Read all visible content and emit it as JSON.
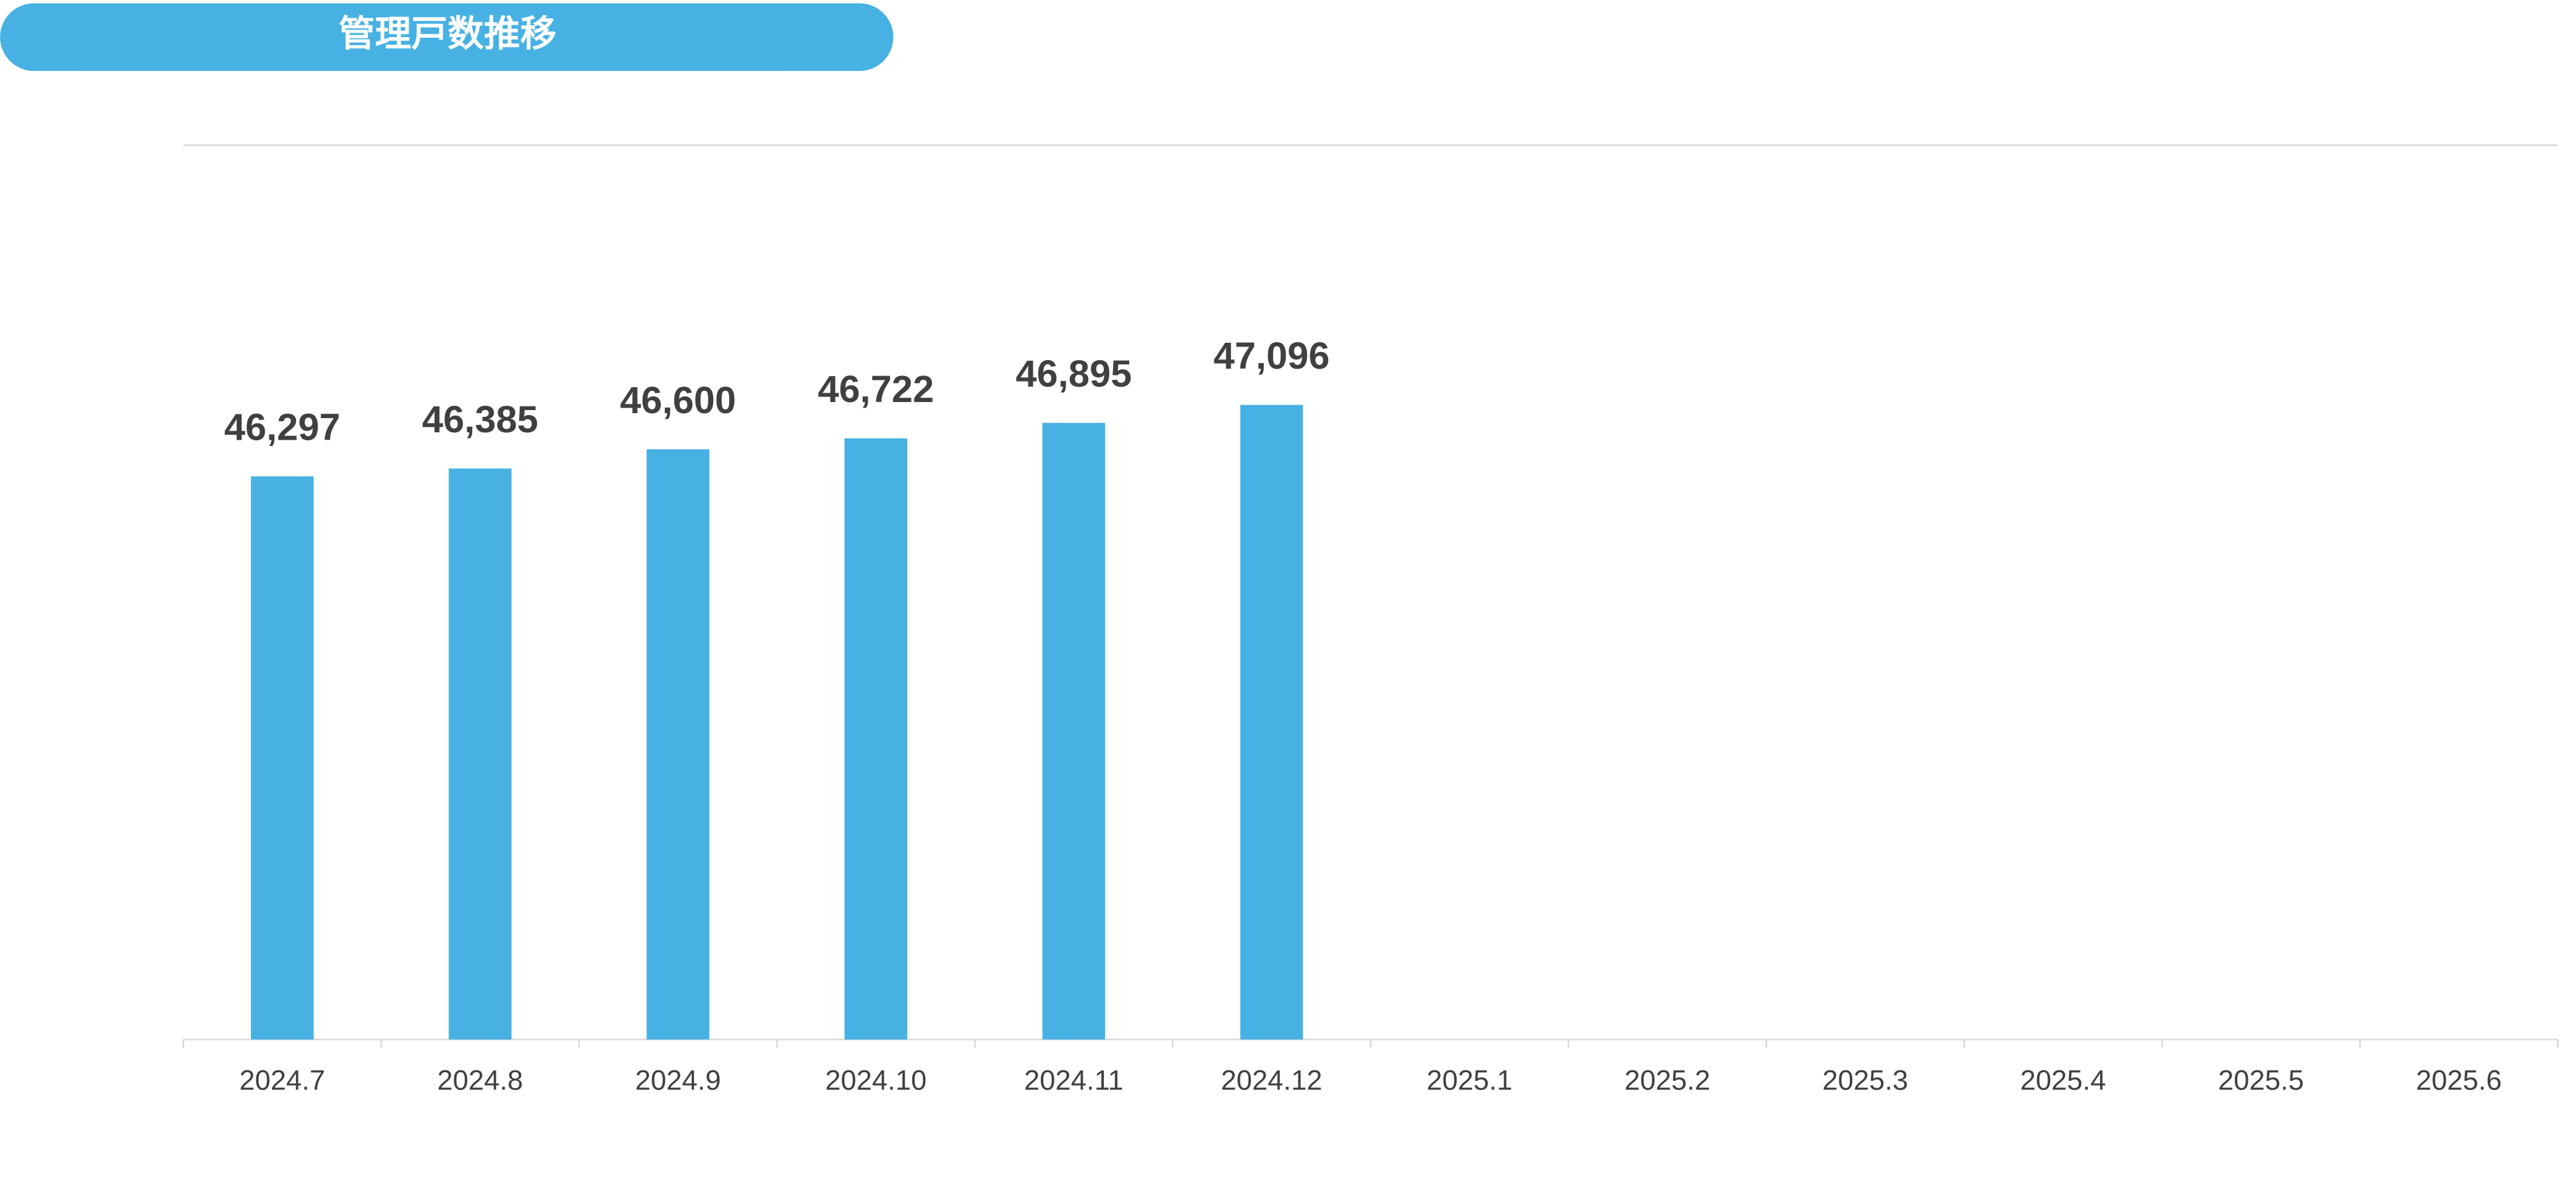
{
  "chart_data": {
    "type": "bar",
    "title": "管理戸数推移",
    "categories": [
      "2024.7",
      "2024.8",
      "2024.9",
      "2024.10",
      "2024.11",
      "2024.12",
      "2025.1",
      "2025.2",
      "2025.3",
      "2025.4",
      "2025.5",
      "2025.6"
    ],
    "values": [
      46297,
      46385,
      46600,
      46722,
      46895,
      47096,
      null,
      null,
      null,
      null,
      null,
      null
    ],
    "value_labels": [
      "46,297",
      "46,385",
      "46,600",
      "46,722",
      "46,895",
      "47,096",
      null,
      null,
      null,
      null,
      null,
      null
    ],
    "color": "#47b1e4",
    "ylim": [
      40000,
      50000
    ]
  }
}
